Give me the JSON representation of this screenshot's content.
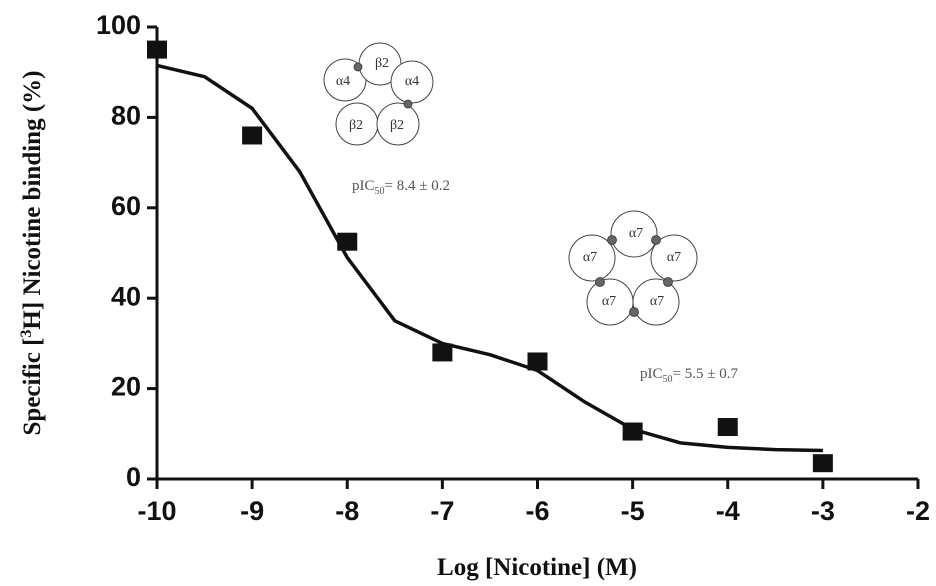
{
  "chart_data": {
    "type": "scatter",
    "x_label": "Log [Nicotine] (M)",
    "y_label": {
      "pre": "Specific [",
      "sup": "3",
      "post": "H] Nicotine binding (%)"
    },
    "x": [
      -10,
      -9,
      -8,
      -7,
      -6,
      -5,
      -4,
      -3
    ],
    "values": [
      95,
      76,
      52.5,
      28,
      26,
      10.5,
      11.5,
      3.5
    ],
    "color": "#111111",
    "curve": {
      "x": [
        -10,
        -9.5,
        -9,
        -8.5,
        -8,
        -7.5,
        -7,
        -6.5,
        -6,
        -5.5,
        -5,
        -4.5,
        -4,
        -3.5,
        -3
      ],
      "values": [
        91.5,
        89,
        82,
        68,
        49,
        35,
        30,
        27.5,
        24,
        17,
        11,
        8,
        7,
        6.5,
        6.3
      ],
      "color": "#111111"
    },
    "xlim": [
      -10,
      -2
    ],
    "xticks": [
      -10,
      -9,
      -8,
      -7,
      -6,
      -5,
      -4,
      -3,
      -2
    ],
    "ylim": [
      0,
      100
    ],
    "yticks": [
      0,
      20,
      40,
      60,
      80,
      100
    ],
    "annotations": [
      {
        "pre": "pIC",
        "sub": "50",
        "post": "= 8.4 ± 0.2"
      },
      {
        "pre": "pIC",
        "sub": "50",
        "post": "= 5.5 ± 0.7"
      }
    ],
    "diagram_labels": [
      [
        "α4",
        "β2",
        "α4",
        "β2",
        "β2"
      ],
      [
        "α7",
        "α7",
        "α7",
        "α7",
        "α7"
      ]
    ]
  }
}
